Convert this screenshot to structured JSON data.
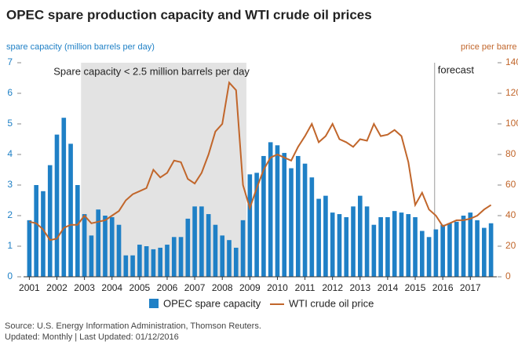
{
  "chart_data": {
    "type": "bar_line",
    "title": "OPEC spare production capacity and WTI crude oil prices",
    "y_label": "spare capacity (million barrels per day)",
    "y2_label": "price per barre",
    "annotations": [
      "Spare capacity < 2.5 million barrels per day",
      "forecast"
    ],
    "shade": [
      2003,
      2009
    ],
    "forecast_start": 2016,
    "source": "Source: U.S. Energy Information Administration, Thomson Reuters.",
    "updated": "Updated: Monthly | Last Updated: 01/12/2016",
    "categories": [
      "2001",
      null,
      null,
      null,
      "2002",
      null,
      null,
      null,
      "2003",
      null,
      null,
      null,
      "2004",
      null,
      null,
      null,
      "2005",
      null,
      null,
      null,
      "2006",
      null,
      null,
      null,
      "2007",
      null,
      null,
      null,
      "2008",
      null,
      null,
      null,
      "2009",
      null,
      null,
      null,
      "2010",
      null,
      null,
      null,
      "2011",
      null,
      null,
      null,
      "2012",
      null,
      null,
      null,
      "2013",
      null,
      null,
      null,
      "2014",
      null,
      null,
      null,
      "2015",
      null,
      null,
      null,
      "2016",
      null,
      null,
      null,
      "2017",
      null,
      null,
      null
    ],
    "series": [
      {
        "name": "OPEC spare capacity",
        "color": "#1f80c6",
        "kind": "bar",
        "values": [
          1.85,
          3.0,
          2.8,
          3.65,
          4.65,
          5.2,
          4.35,
          3.0,
          2.05,
          1.35,
          2.2,
          2.0,
          1.95,
          1.7,
          0.7,
          0.7,
          1.05,
          1.0,
          0.9,
          0.95,
          1.05,
          1.3,
          1.3,
          1.9,
          2.3,
          2.3,
          2.05,
          1.7,
          1.35,
          1.2,
          0.95,
          1.85,
          3.35,
          3.4,
          3.95,
          4.4,
          4.3,
          4.05,
          3.55,
          3.95,
          3.7,
          3.25,
          2.55,
          2.65,
          2.1,
          2.05,
          1.95,
          2.3,
          2.65,
          2.3,
          1.7,
          1.95,
          1.95,
          2.15,
          2.1,
          2.05,
          1.95,
          1.5,
          1.3,
          1.55,
          1.7,
          1.75,
          1.8,
          2.0,
          2.1,
          1.85,
          1.6,
          1.75
        ]
      },
      {
        "name": "WTI crude oil price",
        "color": "#c1662b",
        "kind": "line",
        "axis": "y2",
        "values": [
          36,
          35,
          31,
          24,
          25,
          32,
          34,
          34,
          40,
          35,
          36,
          37,
          40,
          43,
          50,
          54,
          56,
          58,
          70,
          65,
          68,
          76,
          75,
          64,
          61,
          68,
          80,
          95,
          100,
          127,
          122,
          60,
          45,
          58,
          70,
          78,
          80,
          78,
          76,
          85,
          92,
          100,
          88,
          92,
          100,
          90,
          88,
          85,
          90,
          89,
          100,
          92,
          93,
          96,
          92,
          75,
          47,
          55,
          44,
          40,
          33,
          35,
          37,
          37,
          38,
          40,
          44,
          47
        ]
      }
    ],
    "ylim": [
      0,
      7
    ],
    "yticks": [
      0,
      1,
      2,
      3,
      4,
      5,
      6,
      7
    ],
    "y2lim": [
      0,
      140
    ],
    "y2ticks": [
      0,
      20,
      40,
      60,
      80,
      100,
      120,
      140
    ]
  }
}
